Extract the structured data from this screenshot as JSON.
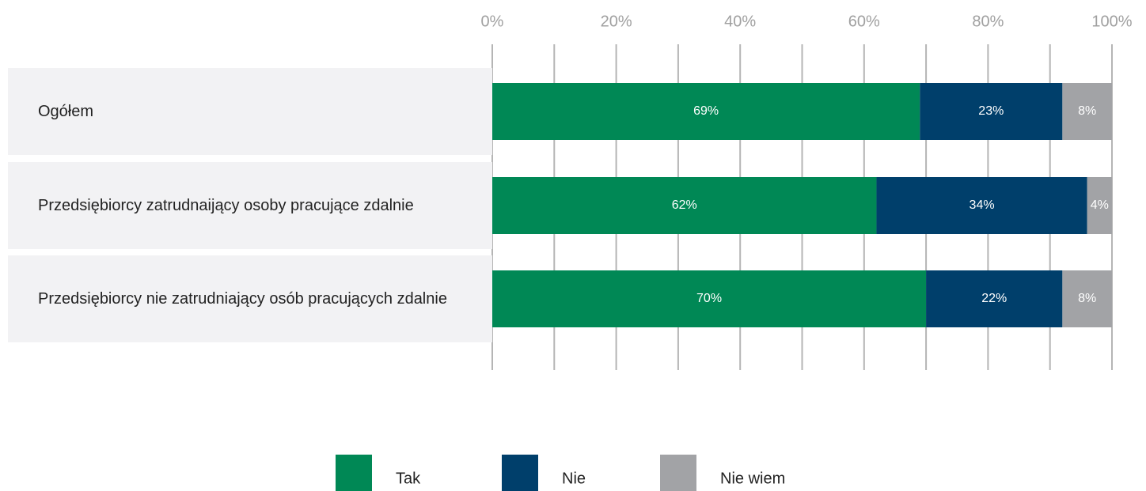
{
  "chart_data": {
    "type": "stacked-bar-horizontal",
    "categories": [
      "Ogółem",
      "Przedsiębiorcy zatrudnaijący osoby pracujące zdalnie",
      "Przedsiębiorcy nie zatrudniający osób pracujących zdalnie"
    ],
    "series": [
      {
        "name": "Tak",
        "color": "#008855",
        "values": [
          69,
          62,
          70
        ],
        "value_labels": [
          "69%",
          "62%",
          "70%"
        ]
      },
      {
        "name": "Nie",
        "color": "#003f6b",
        "values": [
          23,
          34,
          22
        ],
        "value_labels": [
          "23%",
          "34%",
          "22%"
        ]
      },
      {
        "name": "Nie wiem",
        "color": "#a2a3a6",
        "values": [
          8,
          4,
          8
        ],
        "value_labels": [
          "8%",
          "4%",
          "8%"
        ]
      }
    ],
    "xlim": [
      0,
      100
    ],
    "xticks": [
      {
        "value": 0,
        "label": "0%"
      },
      {
        "value": 20,
        "label": "20%"
      },
      {
        "value": 40,
        "label": "40%"
      },
      {
        "value": 60,
        "label": "60%"
      },
      {
        "value": 80,
        "label": "80%"
      },
      {
        "value": 100,
        "label": "100%"
      }
    ],
    "xminorticks": [
      10,
      30,
      50,
      70,
      90
    ],
    "grid": true,
    "legend": "bottom"
  }
}
